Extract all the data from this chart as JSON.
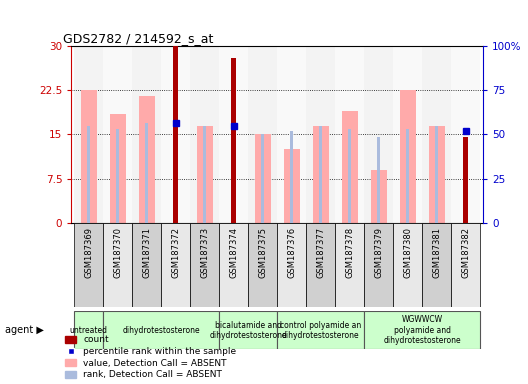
{
  "title": "GDS2782 / 214592_s_at",
  "samples": [
    "GSM187369",
    "GSM187370",
    "GSM187371",
    "GSM187372",
    "GSM187373",
    "GSM187374",
    "GSM187375",
    "GSM187376",
    "GSM187377",
    "GSM187378",
    "GSM187379",
    "GSM187380",
    "GSM187381",
    "GSM187382"
  ],
  "count_values": [
    null,
    null,
    null,
    30,
    null,
    28,
    null,
    null,
    null,
    null,
    null,
    null,
    null,
    14.5
  ],
  "value_absent": [
    22.5,
    18.5,
    21.5,
    null,
    16.5,
    null,
    15,
    12.5,
    16.5,
    19,
    9,
    22.5,
    16.5,
    null
  ],
  "rank_absent": [
    16.5,
    16,
    17,
    null,
    16.5,
    16.5,
    15,
    15.5,
    16.5,
    16,
    14.5,
    16,
    16.5,
    null
  ],
  "percentile_rank": [
    null,
    null,
    null,
    17,
    null,
    16.5,
    null,
    null,
    null,
    null,
    null,
    null,
    null,
    15.5
  ],
  "ylim_left": [
    0,
    30
  ],
  "ylim_right": [
    0,
    100
  ],
  "yticks_left": [
    0,
    7.5,
    15,
    22.5,
    30
  ],
  "yticks_right": [
    0,
    25,
    50,
    75,
    100
  ],
  "ytick_labels_left": [
    "0",
    "7.5",
    "15",
    "22.5",
    "30"
  ],
  "ytick_labels_right": [
    "0",
    "25",
    "50",
    "75",
    "100%"
  ],
  "agent_groups": [
    {
      "label": "untreated",
      "n": 1,
      "color": "#ccffcc"
    },
    {
      "label": "dihydrotestosterone",
      "n": 4,
      "color": "#ccffcc"
    },
    {
      "label": "bicalutamide and\ndihydrotestosterone",
      "n": 2,
      "color": "#ccffcc"
    },
    {
      "label": "control polyamide an\ndihydrotestosterone",
      "n": 3,
      "color": "#ccffcc"
    },
    {
      "label": "WGWWCW\npolyamide and\ndihydrotestosterone",
      "n": 4,
      "color": "#ccffcc"
    }
  ],
  "count_color": "#aa0000",
  "value_absent_color": "#ffaaaa",
  "rank_absent_color": "#aabbdd",
  "percentile_color": "#0000cc",
  "axis_color_left": "#cc0000",
  "axis_color_right": "#0000cc",
  "bg_color": "#ffffff",
  "plot_bg": "#ffffff"
}
